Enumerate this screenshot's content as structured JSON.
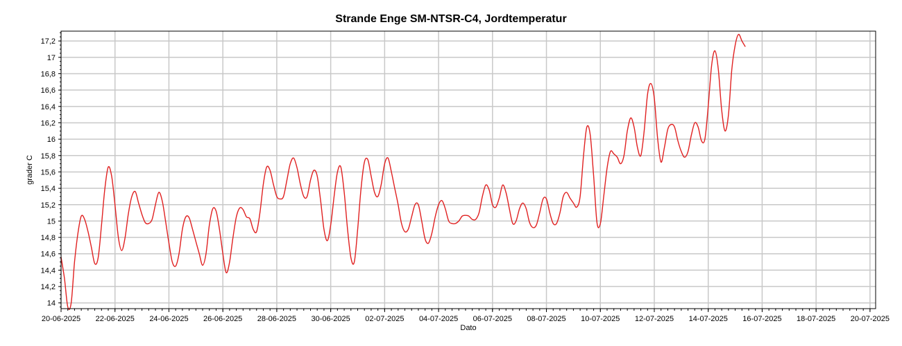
{
  "chart_data": {
    "type": "line",
    "title": "Strande Enge SM-NTSR-C4, Jordtemperatur",
    "xlabel": "Dato",
    "ylabel": "grader C",
    "ylim": [
      13.93,
      17.32
    ],
    "xlim": [
      "2025-06-20",
      "2025-07-20T05:00"
    ],
    "grid": true,
    "x_ticks": [
      "20-06-2025",
      "22-06-2025",
      "24-06-2025",
      "26-06-2025",
      "28-06-2025",
      "30-06-2025",
      "02-07-2025",
      "04-07-2025",
      "06-07-2025",
      "08-07-2025",
      "10-07-2025",
      "12-07-2025",
      "14-07-2025",
      "16-07-2025",
      "18-07-2025",
      "20-07-2025"
    ],
    "y_ticks": [
      "14",
      "14,2",
      "14,4",
      "14,6",
      "14,8",
      "15",
      "15,2",
      "15,4",
      "15,6",
      "15,8",
      "16",
      "16,2",
      "16,4",
      "16,6",
      "16,8",
      "17",
      "17,2"
    ],
    "series": [
      {
        "color": "#e02020",
        "points": [
          [
            "2025-06-20T00:00",
            14.56
          ],
          [
            "2025-06-20T03:00",
            14.3
          ],
          [
            "2025-06-20T06:00",
            13.95
          ],
          [
            "2025-06-20T09:00",
            14.0
          ],
          [
            "2025-06-20T12:00",
            14.5
          ],
          [
            "2025-06-20T15:00",
            14.85
          ],
          [
            "2025-06-20T18:00",
            15.06
          ],
          [
            "2025-06-20T21:00",
            15.02
          ],
          [
            "2025-06-21T00:00",
            14.87
          ],
          [
            "2025-06-21T03:00",
            14.68
          ],
          [
            "2025-06-21T06:00",
            14.48
          ],
          [
            "2025-06-21T09:00",
            14.55
          ],
          [
            "2025-06-21T12:00",
            14.95
          ],
          [
            "2025-06-21T15:00",
            15.4
          ],
          [
            "2025-06-21T18:00",
            15.66
          ],
          [
            "2025-06-21T21:00",
            15.55
          ],
          [
            "2025-06-22T00:00",
            15.2
          ],
          [
            "2025-06-22T03:00",
            14.8
          ],
          [
            "2025-06-22T06:00",
            14.64
          ],
          [
            "2025-06-22T09:00",
            14.8
          ],
          [
            "2025-06-22T12:00",
            15.1
          ],
          [
            "2025-06-22T15:00",
            15.3
          ],
          [
            "2025-06-22T18:00",
            15.36
          ],
          [
            "2025-06-22T21:00",
            15.22
          ],
          [
            "2025-06-23T00:00",
            15.08
          ],
          [
            "2025-06-23T03:00",
            14.98
          ],
          [
            "2025-06-23T06:00",
            14.97
          ],
          [
            "2025-06-23T09:00",
            15.02
          ],
          [
            "2025-06-23T12:00",
            15.2
          ],
          [
            "2025-06-23T15:00",
            15.35
          ],
          [
            "2025-06-23T18:00",
            15.25
          ],
          [
            "2025-06-23T21:00",
            15.0
          ],
          [
            "2025-06-24T00:00",
            14.73
          ],
          [
            "2025-06-24T03:00",
            14.5
          ],
          [
            "2025-06-24T06:00",
            14.45
          ],
          [
            "2025-06-24T09:00",
            14.6
          ],
          [
            "2025-06-24T12:00",
            14.9
          ],
          [
            "2025-06-24T15:00",
            15.05
          ],
          [
            "2025-06-24T18:00",
            15.04
          ],
          [
            "2025-06-24T21:00",
            14.9
          ],
          [
            "2025-06-25T00:00",
            14.75
          ],
          [
            "2025-06-25T03:00",
            14.6
          ],
          [
            "2025-06-25T06:00",
            14.46
          ],
          [
            "2025-06-25T09:00",
            14.6
          ],
          [
            "2025-06-25T12:00",
            14.95
          ],
          [
            "2025-06-25T15:00",
            15.15
          ],
          [
            "2025-06-25T18:00",
            15.12
          ],
          [
            "2025-06-25T21:00",
            14.9
          ],
          [
            "2025-06-26T00:00",
            14.6
          ],
          [
            "2025-06-26T03:00",
            14.37
          ],
          [
            "2025-06-26T06:00",
            14.5
          ],
          [
            "2025-06-26T09:00",
            14.8
          ],
          [
            "2025-06-26T12:00",
            15.05
          ],
          [
            "2025-06-26T15:00",
            15.16
          ],
          [
            "2025-06-26T18:00",
            15.14
          ],
          [
            "2025-06-26T21:00",
            15.05
          ],
          [
            "2025-06-27T00:00",
            15.03
          ],
          [
            "2025-06-27T03:00",
            14.9
          ],
          [
            "2025-06-27T06:00",
            14.87
          ],
          [
            "2025-06-27T09:00",
            15.1
          ],
          [
            "2025-06-27T12:00",
            15.45
          ],
          [
            "2025-06-27T15:00",
            15.66
          ],
          [
            "2025-06-27T18:00",
            15.62
          ],
          [
            "2025-06-27T21:00",
            15.45
          ],
          [
            "2025-06-28T00:00",
            15.3
          ],
          [
            "2025-06-28T03:00",
            15.27
          ],
          [
            "2025-06-28T06:00",
            15.3
          ],
          [
            "2025-06-28T09:00",
            15.5
          ],
          [
            "2025-06-28T12:00",
            15.7
          ],
          [
            "2025-06-28T15:00",
            15.77
          ],
          [
            "2025-06-28T18:00",
            15.65
          ],
          [
            "2025-06-28T21:00",
            15.45
          ],
          [
            "2025-06-29T00:00",
            15.3
          ],
          [
            "2025-06-29T03:00",
            15.3
          ],
          [
            "2025-06-29T06:00",
            15.5
          ],
          [
            "2025-06-29T09:00",
            15.62
          ],
          [
            "2025-06-29T12:00",
            15.55
          ],
          [
            "2025-06-29T15:00",
            15.25
          ],
          [
            "2025-06-29T18:00",
            14.9
          ],
          [
            "2025-06-29T21:00",
            14.76
          ],
          [
            "2025-06-30T00:00",
            14.95
          ],
          [
            "2025-06-30T03:00",
            15.3
          ],
          [
            "2025-06-30T06:00",
            15.6
          ],
          [
            "2025-06-30T09:00",
            15.66
          ],
          [
            "2025-06-30T12:00",
            15.35
          ],
          [
            "2025-06-30T15:00",
            14.9
          ],
          [
            "2025-06-30T18:00",
            14.55
          ],
          [
            "2025-06-30T21:00",
            14.5
          ],
          [
            "2025-07-01T00:00",
            14.9
          ],
          [
            "2025-07-01T03:00",
            15.4
          ],
          [
            "2025-07-01T06:00",
            15.72
          ],
          [
            "2025-07-01T09:00",
            15.75
          ],
          [
            "2025-07-01T12:00",
            15.55
          ],
          [
            "2025-07-01T15:00",
            15.35
          ],
          [
            "2025-07-01T18:00",
            15.3
          ],
          [
            "2025-07-01T21:00",
            15.45
          ],
          [
            "2025-07-02T00:00",
            15.7
          ],
          [
            "2025-07-02T03:00",
            15.77
          ],
          [
            "2025-07-02T06:00",
            15.6
          ],
          [
            "2025-07-02T09:00",
            15.4
          ],
          [
            "2025-07-02T12:00",
            15.2
          ],
          [
            "2025-07-02T15:00",
            14.97
          ],
          [
            "2025-07-02T18:00",
            14.87
          ],
          [
            "2025-07-02T21:00",
            14.9
          ],
          [
            "2025-07-03T00:00",
            15.05
          ],
          [
            "2025-07-03T03:00",
            15.2
          ],
          [
            "2025-07-03T06:00",
            15.2
          ],
          [
            "2025-07-03T09:00",
            15.0
          ],
          [
            "2025-07-03T12:00",
            14.78
          ],
          [
            "2025-07-03T15:00",
            14.73
          ],
          [
            "2025-07-03T18:00",
            14.85
          ],
          [
            "2025-07-03T21:00",
            15.05
          ],
          [
            "2025-07-04T00:00",
            15.2
          ],
          [
            "2025-07-04T03:00",
            15.25
          ],
          [
            "2025-07-04T06:00",
            15.15
          ],
          [
            "2025-07-04T09:00",
            15.0
          ],
          [
            "2025-07-04T12:00",
            14.97
          ],
          [
            "2025-07-04T15:00",
            14.97
          ],
          [
            "2025-07-04T18:00",
            15.0
          ],
          [
            "2025-07-04T21:00",
            15.06
          ],
          [
            "2025-07-05T00:00",
            15.07
          ],
          [
            "2025-07-05T03:00",
            15.06
          ],
          [
            "2025-07-05T06:00",
            15.02
          ],
          [
            "2025-07-05T09:00",
            15.02
          ],
          [
            "2025-07-05T12:00",
            15.1
          ],
          [
            "2025-07-05T15:00",
            15.3
          ],
          [
            "2025-07-05T18:00",
            15.44
          ],
          [
            "2025-07-05T21:00",
            15.38
          ],
          [
            "2025-07-06T00:00",
            15.2
          ],
          [
            "2025-07-06T03:00",
            15.17
          ],
          [
            "2025-07-06T06:00",
            15.28
          ],
          [
            "2025-07-06T09:00",
            15.44
          ],
          [
            "2025-07-06T12:00",
            15.35
          ],
          [
            "2025-07-06T15:00",
            15.15
          ],
          [
            "2025-07-06T18:00",
            14.97
          ],
          [
            "2025-07-06T21:00",
            15.0
          ],
          [
            "2025-07-07T00:00",
            15.15
          ],
          [
            "2025-07-07T03:00",
            15.22
          ],
          [
            "2025-07-07T06:00",
            15.15
          ],
          [
            "2025-07-07T09:00",
            14.98
          ],
          [
            "2025-07-07T12:00",
            14.92
          ],
          [
            "2025-07-07T15:00",
            14.95
          ],
          [
            "2025-07-07T18:00",
            15.1
          ],
          [
            "2025-07-07T21:00",
            15.27
          ],
          [
            "2025-07-08T00:00",
            15.27
          ],
          [
            "2025-07-08T03:00",
            15.1
          ],
          [
            "2025-07-08T06:00",
            14.97
          ],
          [
            "2025-07-08T09:00",
            14.97
          ],
          [
            "2025-07-08T12:00",
            15.1
          ],
          [
            "2025-07-08T15:00",
            15.3
          ],
          [
            "2025-07-08T18:00",
            15.35
          ],
          [
            "2025-07-08T21:00",
            15.28
          ],
          [
            "2025-07-09T00:00",
            15.22
          ],
          [
            "2025-07-09T03:00",
            15.17
          ],
          [
            "2025-07-09T06:00",
            15.3
          ],
          [
            "2025-07-09T09:00",
            15.8
          ],
          [
            "2025-07-09T12:00",
            16.15
          ],
          [
            "2025-07-09T15:00",
            16.05
          ],
          [
            "2025-07-09T18:00",
            15.55
          ],
          [
            "2025-07-09T21:00",
            14.98
          ],
          [
            "2025-07-10T00:00",
            14.97
          ],
          [
            "2025-07-10T03:00",
            15.3
          ],
          [
            "2025-07-10T06:00",
            15.65
          ],
          [
            "2025-07-10T09:00",
            15.85
          ],
          [
            "2025-07-10T12:00",
            15.82
          ],
          [
            "2025-07-10T15:00",
            15.78
          ],
          [
            "2025-07-10T18:00",
            15.7
          ],
          [
            "2025-07-10T21:00",
            15.8
          ],
          [
            "2025-07-11T00:00",
            16.1
          ],
          [
            "2025-07-11T03:00",
            16.26
          ],
          [
            "2025-07-11T06:00",
            16.15
          ],
          [
            "2025-07-11T09:00",
            15.9
          ],
          [
            "2025-07-11T12:00",
            15.8
          ],
          [
            "2025-07-11T15:00",
            16.1
          ],
          [
            "2025-07-11T18:00",
            16.55
          ],
          [
            "2025-07-11T21:00",
            16.68
          ],
          [
            "2025-07-12T00:00",
            16.5
          ],
          [
            "2025-07-12T03:00",
            16.0
          ],
          [
            "2025-07-12T06:00",
            15.72
          ],
          [
            "2025-07-12T09:00",
            15.9
          ],
          [
            "2025-07-12T12:00",
            16.12
          ],
          [
            "2025-07-12T15:00",
            16.18
          ],
          [
            "2025-07-12T18:00",
            16.15
          ],
          [
            "2025-07-12T21:00",
            15.98
          ],
          [
            "2025-07-13T00:00",
            15.85
          ],
          [
            "2025-07-13T03:00",
            15.78
          ],
          [
            "2025-07-13T06:00",
            15.85
          ],
          [
            "2025-07-13T09:00",
            16.05
          ],
          [
            "2025-07-13T12:00",
            16.2
          ],
          [
            "2025-07-13T15:00",
            16.15
          ],
          [
            "2025-07-13T18:00",
            15.98
          ],
          [
            "2025-07-13T21:00",
            16.0
          ],
          [
            "2025-07-14T00:00",
            16.4
          ],
          [
            "2025-07-14T03:00",
            16.9
          ],
          [
            "2025-07-14T06:00",
            17.08
          ],
          [
            "2025-07-14T09:00",
            16.85
          ],
          [
            "2025-07-14T12:00",
            16.35
          ],
          [
            "2025-07-14T15:00",
            16.1
          ],
          [
            "2025-07-14T18:00",
            16.3
          ],
          [
            "2025-07-14T21:00",
            16.85
          ],
          [
            "2025-07-15T00:00",
            17.15
          ],
          [
            "2025-07-15T03:00",
            17.28
          ],
          [
            "2025-07-15T06:00",
            17.2
          ],
          [
            "2025-07-15T09:00",
            17.13
          ]
        ]
      }
    ]
  }
}
